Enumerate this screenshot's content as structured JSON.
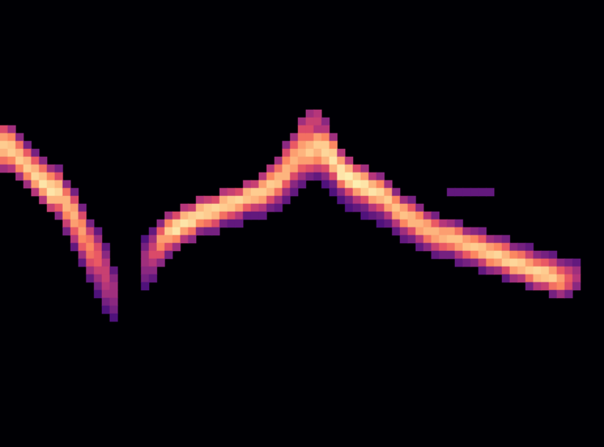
{
  "chart_data": {
    "type": "heatmap",
    "color": "magma",
    "zlim": [
      0,
      1
    ],
    "xlim": [
      -0.5,
      76.5
    ],
    "ylim": [
      -0.5,
      56.5
    ],
    "tick_labels": false,
    "grid": false,
    "cells": [
      {
        "x": 0,
        "y_top": 40,
        "values": [
          0.6,
          0.8,
          0.9,
          0.85,
          0.7,
          0.45
        ]
      },
      {
        "x": 1,
        "y_top": 40,
        "values": [
          0.45,
          0.75,
          0.88,
          0.9,
          0.75,
          0.5
        ]
      },
      {
        "x": 2,
        "y_top": 39,
        "values": [
          0.4,
          0.7,
          0.85,
          0.9,
          0.75,
          0.45
        ]
      },
      {
        "x": 3,
        "y_top": 38,
        "values": [
          0.35,
          0.65,
          0.85,
          0.9,
          0.75,
          0.45
        ]
      },
      {
        "x": 4,
        "y_top": 37,
        "values": [
          0.35,
          0.65,
          0.85,
          0.92,
          0.8,
          0.5
        ]
      },
      {
        "x": 5,
        "y_top": 36,
        "values": [
          0.4,
          0.7,
          0.88,
          0.95,
          0.8,
          0.5
        ]
      },
      {
        "x": 6,
        "y_top": 35,
        "values": [
          0.45,
          0.75,
          0.9,
          0.95,
          0.85,
          0.55
        ]
      },
      {
        "x": 7,
        "y_top": 35,
        "values": [
          0.35,
          0.6,
          0.85,
          0.92,
          0.85,
          0.65,
          0.4
        ]
      },
      {
        "x": 8,
        "y_top": 33,
        "values": [
          0.4,
          0.7,
          0.85,
          0.85,
          0.75,
          0.55,
          0.35
        ]
      },
      {
        "x": 9,
        "y_top": 32,
        "values": [
          0.35,
          0.6,
          0.8,
          0.85,
          0.8,
          0.65,
          0.5,
          0.3
        ]
      },
      {
        "x": 10,
        "y_top": 30,
        "values": [
          0.35,
          0.6,
          0.75,
          0.8,
          0.75,
          0.65,
          0.45,
          0.3
        ]
      },
      {
        "x": 11,
        "y_top": 28,
        "values": [
          0.35,
          0.55,
          0.7,
          0.75,
          0.7,
          0.6,
          0.45,
          0.3
        ]
      },
      {
        "x": 12,
        "y_top": 27,
        "values": [
          0.3,
          0.45,
          0.6,
          0.65,
          0.65,
          0.55,
          0.45,
          0.35,
          0.25
        ]
      },
      {
        "x": 13,
        "y_top": 25,
        "values": [
          0.3,
          0.4,
          0.5,
          0.55,
          0.55,
          0.5,
          0.45,
          0.35,
          0.25
        ]
      },
      {
        "x": 14,
        "y_top": 22,
        "values": [
          0.3,
          0.4,
          0.45,
          0.45,
          0.4,
          0.35,
          0.25
        ]
      },
      {
        "x": 18,
        "y_top": 26,
        "values": [
          0.25,
          0.35,
          0.45,
          0.45,
          0.4,
          0.35,
          0.25
        ]
      },
      {
        "x": 19,
        "y_top": 27,
        "values": [
          0.3,
          0.45,
          0.55,
          0.6,
          0.5,
          0.4,
          0.3
        ]
      },
      {
        "x": 20,
        "y_top": 28,
        "values": [
          0.4,
          0.65,
          0.8,
          0.75,
          0.6,
          0.4
        ]
      },
      {
        "x": 21,
        "y_top": 29,
        "values": [
          0.45,
          0.75,
          0.9,
          0.8,
          0.6,
          0.35
        ]
      },
      {
        "x": 22,
        "y_top": 29,
        "values": [
          0.6,
          0.9,
          0.95,
          0.75,
          0.45
        ]
      },
      {
        "x": 23,
        "y_top": 30,
        "values": [
          0.5,
          0.85,
          0.95,
          0.8,
          0.5
        ]
      },
      {
        "x": 24,
        "y_top": 30,
        "values": [
          0.55,
          0.9,
          0.92,
          0.7,
          0.4
        ]
      },
      {
        "x": 25,
        "y_top": 31,
        "values": [
          0.5,
          0.85,
          0.92,
          0.75,
          0.4
        ]
      },
      {
        "x": 26,
        "y_top": 31,
        "values": [
          0.55,
          0.9,
          0.9,
          0.7,
          0.35
        ]
      },
      {
        "x": 27,
        "y_top": 31,
        "values": [
          0.6,
          0.92,
          0.85,
          0.6,
          0.35
        ]
      },
      {
        "x": 28,
        "y_top": 32,
        "values": [
          0.5,
          0.85,
          0.9,
          0.7,
          0.35
        ]
      },
      {
        "x": 29,
        "y_top": 32,
        "values": [
          0.55,
          0.9,
          0.88,
          0.6,
          0.3
        ]
      },
      {
        "x": 30,
        "y_top": 32,
        "values": [
          0.6,
          0.92,
          0.8,
          0.5,
          0.3
        ]
      },
      {
        "x": 31,
        "y_top": 33,
        "values": [
          0.5,
          0.85,
          0.88,
          0.65,
          0.3
        ]
      },
      {
        "x": 32,
        "y_top": 33,
        "values": [
          0.55,
          0.9,
          0.85,
          0.55,
          0.3
        ]
      },
      {
        "x": 33,
        "y_top": 34,
        "values": [
          0.5,
          0.8,
          0.9,
          0.8,
          0.5,
          0.3
        ]
      },
      {
        "x": 34,
        "y_top": 35,
        "values": [
          0.5,
          0.75,
          0.9,
          0.85,
          0.6,
          0.35
        ]
      },
      {
        "x": 35,
        "y_top": 36,
        "values": [
          0.45,
          0.7,
          0.85,
          0.88,
          0.7,
          0.45,
          0.3
        ]
      },
      {
        "x": 36,
        "y_top": 38,
        "values": [
          0.4,
          0.6,
          0.75,
          0.85,
          0.85,
          0.65,
          0.45,
          0.3
        ]
      },
      {
        "x": 37,
        "y_top": 39,
        "values": [
          0.45,
          0.65,
          0.8,
          0.85,
          0.8,
          0.6,
          0.4,
          0.3
        ]
      },
      {
        "x": 38,
        "y_top": 41,
        "values": [
          0.45,
          0.6,
          0.7,
          0.8,
          0.85,
          0.8,
          0.65,
          0.45,
          0.3
        ]
      },
      {
        "x": 39,
        "y_top": 42,
        "values": [
          0.45,
          0.55,
          0.6,
          0.7,
          0.85,
          0.9,
          0.8,
          0.6,
          0.35
        ]
      },
      {
        "x": 40,
        "y_top": 42,
        "values": [
          0.5,
          0.55,
          0.5,
          0.8,
          0.9,
          0.85,
          0.75,
          0.55,
          0.3
        ]
      },
      {
        "x": 41,
        "y_top": 41,
        "values": [
          0.4,
          0.5,
          0.75,
          0.9,
          0.92,
          0.85,
          0.6,
          0.4,
          0.25
        ]
      },
      {
        "x": 42,
        "y_top": 39,
        "values": [
          0.45,
          0.75,
          0.9,
          0.95,
          0.85,
          0.6,
          0.35,
          0.25
        ]
      },
      {
        "x": 43,
        "y_top": 37,
        "values": [
          0.5,
          0.8,
          0.95,
          0.95,
          0.7,
          0.4,
          0.25
        ]
      },
      {
        "x": 44,
        "y_top": 36,
        "values": [
          0.5,
          0.85,
          0.97,
          0.9,
          0.6,
          0.35,
          0.25
        ]
      },
      {
        "x": 45,
        "y_top": 35,
        "values": [
          0.6,
          0.9,
          0.97,
          0.8,
          0.5,
          0.3
        ]
      },
      {
        "x": 46,
        "y_top": 35,
        "values": [
          0.45,
          0.8,
          0.95,
          0.9,
          0.6,
          0.35,
          0.25
        ]
      },
      {
        "x": 47,
        "y_top": 34,
        "values": [
          0.5,
          0.85,
          0.95,
          0.8,
          0.5,
          0.3
        ]
      },
      {
        "x": 48,
        "y_top": 34,
        "values": [
          0.4,
          0.75,
          0.92,
          0.85,
          0.6,
          0.35,
          0.25
        ]
      },
      {
        "x": 49,
        "y_top": 33,
        "values": [
          0.45,
          0.8,
          0.9,
          0.8,
          0.5,
          0.3
        ]
      },
      {
        "x": 50,
        "y_top": 32,
        "values": [
          0.4,
          0.75,
          0.88,
          0.8,
          0.5,
          0.3
        ]
      },
      {
        "x": 51,
        "y_top": 31,
        "values": [
          0.45,
          0.8,
          0.88,
          0.75,
          0.45,
          0.3
        ]
      },
      {
        "x": 52,
        "y_top": 31,
        "values": [
          0.35,
          0.65,
          0.85,
          0.85,
          0.6,
          0.35
        ]
      },
      {
        "x": 53,
        "y_top": 30,
        "values": [
          0.4,
          0.75,
          0.85,
          0.8,
          0.5,
          0.3
        ]
      },
      {
        "x": 54,
        "y_top": 29,
        "values": [
          0.5,
          0.8,
          0.85,
          0.7,
          0.4
        ]
      },
      {
        "x": 55,
        "y_top": 29,
        "values": [
          0.35,
          0.65,
          0.85,
          0.8,
          0.55,
          0.3
        ]
      },
      {
        "x": 56,
        "y_top": 28,
        "values": [
          0.5,
          0.8,
          0.85,
          0.65,
          0.35
        ]
      },
      {
        "x": 57,
        "y_top": 28,
        "values": [
          0.45,
          0.8,
          0.88,
          0.7,
          0.35
        ]
      },
      {
        "x": 58,
        "y_top": 28,
        "values": [
          0.35,
          0.7,
          0.88,
          0.8,
          0.5,
          0.3
        ]
      },
      {
        "x": 59,
        "y_top": 27,
        "values": [
          0.45,
          0.8,
          0.88,
          0.65,
          0.35
        ]
      },
      {
        "x": 60,
        "y_top": 27,
        "values": [
          0.4,
          0.75,
          0.9,
          0.75,
          0.4
        ]
      },
      {
        "x": 61,
        "y_top": 27,
        "values": [
          0.35,
          0.65,
          0.88,
          0.85,
          0.55,
          0.3
        ]
      },
      {
        "x": 62,
        "y_top": 26,
        "values": [
          0.45,
          0.8,
          0.9,
          0.75,
          0.4
        ]
      },
      {
        "x": 63,
        "y_top": 26,
        "values": [
          0.4,
          0.75,
          0.92,
          0.8,
          0.45
        ]
      },
      {
        "x": 64,
        "y_top": 26,
        "values": [
          0.35,
          0.65,
          0.85,
          0.9,
          0.6,
          0.3
        ]
      },
      {
        "x": 65,
        "y_top": 25,
        "values": [
          0.4,
          0.75,
          0.92,
          0.8,
          0.45
        ]
      },
      {
        "x": 66,
        "y_top": 25,
        "values": [
          0.35,
          0.7,
          0.9,
          0.85,
          0.5
        ]
      },
      {
        "x": 67,
        "y_top": 25,
        "values": [
          0.3,
          0.55,
          0.8,
          0.9,
          0.7,
          0.35
        ]
      },
      {
        "x": 68,
        "y_top": 24,
        "values": [
          0.4,
          0.7,
          0.92,
          0.85,
          0.5
        ]
      },
      {
        "x": 69,
        "y_top": 24,
        "values": [
          0.35,
          0.65,
          0.9,
          0.88,
          0.55
        ]
      },
      {
        "x": 70,
        "y_top": 24,
        "values": [
          0.3,
          0.55,
          0.8,
          0.9,
          0.7,
          0.35
        ]
      },
      {
        "x": 71,
        "y_top": 23,
        "values": [
          0.4,
          0.65,
          0.8,
          0.75,
          0.45
        ]
      },
      {
        "x": 72,
        "y_top": 23,
        "values": [
          0.35,
          0.55,
          0.65,
          0.6,
          0.35
        ]
      },
      {
        "x": 73,
        "y_top": 23,
        "values": [
          0.3,
          0.45,
          0.5,
          0.4
        ]
      },
      {
        "x": 57,
        "y_top": 32,
        "values": [
          0.3
        ]
      },
      {
        "x": 58,
        "y_top": 32,
        "values": [
          0.3
        ]
      },
      {
        "x": 59,
        "y_top": 32,
        "values": [
          0.3
        ]
      },
      {
        "x": 60,
        "y_top": 32,
        "values": [
          0.3
        ]
      },
      {
        "x": 61,
        "y_top": 32,
        "values": [
          0.3
        ]
      },
      {
        "x": 62,
        "y_top": 32,
        "values": [
          0.3
        ]
      }
    ]
  }
}
